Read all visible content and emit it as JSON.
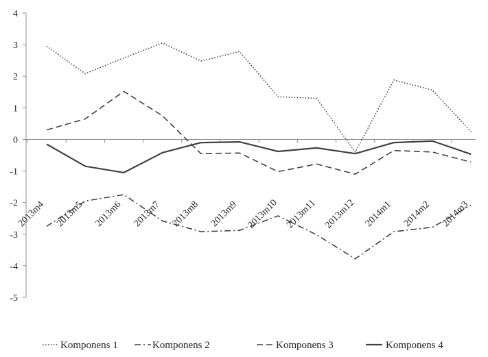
{
  "chart_data": {
    "type": "line",
    "categories": [
      "2013m4",
      "2013m5",
      "2013m6",
      "2013m7",
      "2013m8",
      "2013m9",
      "2013m10",
      "2013m11",
      "2013m12",
      "2014m1",
      "2014m2",
      "2014m3"
    ],
    "series": [
      {
        "name": "Komponens 1",
        "style": "dotted",
        "color": "#404040",
        "values": [
          2.95,
          2.08,
          2.58,
          3.05,
          2.48,
          2.78,
          1.35,
          1.3,
          -0.4,
          1.88,
          1.56,
          0.25
        ]
      },
      {
        "name": "Komponens 2",
        "style": "dash-dot",
        "color": "#404040",
        "values": [
          -2.75,
          -1.95,
          -1.75,
          -2.58,
          -2.92,
          -2.88,
          -2.42,
          -3.02,
          -3.78,
          -2.92,
          -2.78,
          -2.08
        ]
      },
      {
        "name": "Komponens 3",
        "style": "dashed",
        "color": "#404040",
        "values": [
          0.3,
          0.65,
          1.52,
          0.75,
          -0.45,
          -0.43,
          -1.02,
          -0.78,
          -1.1,
          -0.35,
          -0.4,
          -0.72
        ]
      },
      {
        "name": "Komponens 4",
        "style": "solid",
        "color": "#404040",
        "values": [
          -0.15,
          -0.85,
          -1.05,
          -0.42,
          -0.1,
          -0.08,
          -0.38,
          -0.27,
          -0.45,
          -0.1,
          -0.05,
          -0.47
        ]
      }
    ],
    "yticks": [
      4,
      3,
      2,
      1,
      0,
      -1,
      -2,
      -3,
      -4,
      -5
    ],
    "ylim": [
      -5,
      4
    ],
    "xlabel": "",
    "ylabel": "",
    "grid": false,
    "legend_position": "bottom"
  }
}
